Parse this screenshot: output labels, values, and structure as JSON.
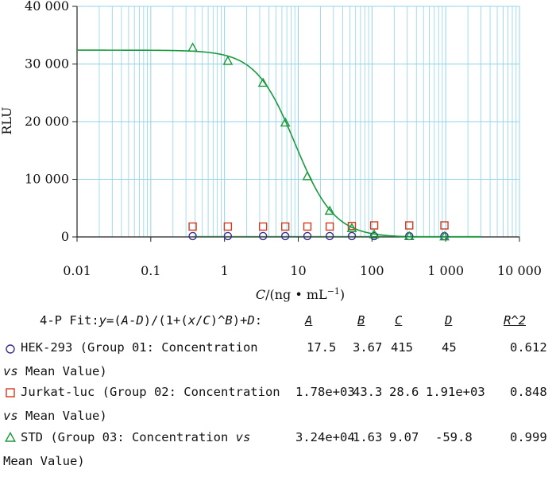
{
  "chart_data": {
    "type": "scatter",
    "x_scale": "log",
    "xlim": [
      0.01,
      10000
    ],
    "ylim": [
      0,
      40000
    ],
    "x_ticks": [
      {
        "value": 0.01,
        "label": "0.01"
      },
      {
        "value": 0.1,
        "label": "0.1"
      },
      {
        "value": 1,
        "label": "1"
      },
      {
        "value": 10,
        "label": "10"
      },
      {
        "value": 100,
        "label": "100"
      },
      {
        "value": 1000,
        "label": "1 000"
      },
      {
        "value": 10000,
        "label": "10 000"
      }
    ],
    "y_ticks": [
      {
        "value": 0,
        "label": "0"
      },
      {
        "value": 10000,
        "label": "10 000"
      },
      {
        "value": 20000,
        "label": "20 000"
      },
      {
        "value": 30000,
        "label": "30 000"
      },
      {
        "value": 40000,
        "label": "40 000"
      }
    ],
    "xlabel_italic": "C",
    "xlabel_rest": "/(ng • mL",
    "xlabel_sup": "−1",
    "xlabel_close": ")",
    "ylabel": "RLU",
    "grid": true,
    "colors": {
      "grid": "#8ed3ea",
      "fit": "#1a9a3c",
      "group1": "#3c2b8f",
      "group2": "#d23a1e",
      "group3": "#1a9a3c"
    },
    "series": [
      {
        "name": "HEK-293",
        "marker": "circle",
        "x": [
          0.37,
          1.11,
          3.33,
          6.67,
          13.3,
          26.7,
          53.3,
          107,
          320,
          960
        ],
        "y": [
          150,
          150,
          150,
          150,
          150,
          150,
          150,
          150,
          150,
          150
        ]
      },
      {
        "name": "Jurkat-luc",
        "marker": "square",
        "x": [
          0.37,
          1.11,
          3.33,
          6.67,
          13.3,
          26.7,
          53.3,
          107,
          320,
          960
        ],
        "y": [
          1800,
          1800,
          1800,
          1800,
          1800,
          1800,
          1900,
          2000,
          2000,
          2000
        ]
      },
      {
        "name": "STD",
        "marker": "triangle",
        "x": [
          0.37,
          1.11,
          3.33,
          6.67,
          13.3,
          26.7,
          53.3,
          107,
          320,
          960
        ],
        "y": [
          32800,
          30500,
          26700,
          19800,
          10500,
          4500,
          1500,
          400,
          100,
          50
        ]
      }
    ],
    "fit": {
      "model": "4-P",
      "A": 32400,
      "B": 1.63,
      "C": 9.07,
      "D": -59.8,
      "x_range": [
        0.01,
        3000
      ]
    }
  },
  "legend": {
    "formula": {
      "prefix": "4-P Fit:",
      "y": "y",
      "p1": "=(",
      "A": "A",
      "dash1": "-",
      "D1": "D",
      "p2": ")/(1+(",
      "x": "x",
      "slash": "/",
      "C": "C",
      "p3": ")^",
      "B": "B",
      "p4": ")+",
      "D2": "D",
      "colon": ":"
    },
    "headers": [
      "A",
      "B",
      "C",
      "D",
      "R^2"
    ],
    "rows": [
      {
        "line1": "HEK-293 (Group 01: Concentration",
        "vs": "vs",
        "line2_after": " Mean Value)",
        "A": "17.5",
        "B": "3.67",
        "C": "415",
        "D": "45",
        "R2": "0.612"
      },
      {
        "line1": "Jurkat-luc (Group 02: Concentration",
        "vs": "vs",
        "line2_after": " Mean Value)",
        "A": "1.78e+03",
        "B": "43.3",
        "C": "28.6",
        "D": "1.91e+03",
        "R2": "0.848"
      },
      {
        "line1a": "STD (Group 03: Concentration ",
        "vs": "vs",
        "line2": "Mean Value)",
        "A": "3.24e+04",
        "B": "1.63",
        "C": "9.07",
        "D": "-59.8",
        "R2": "0.999"
      }
    ]
  }
}
